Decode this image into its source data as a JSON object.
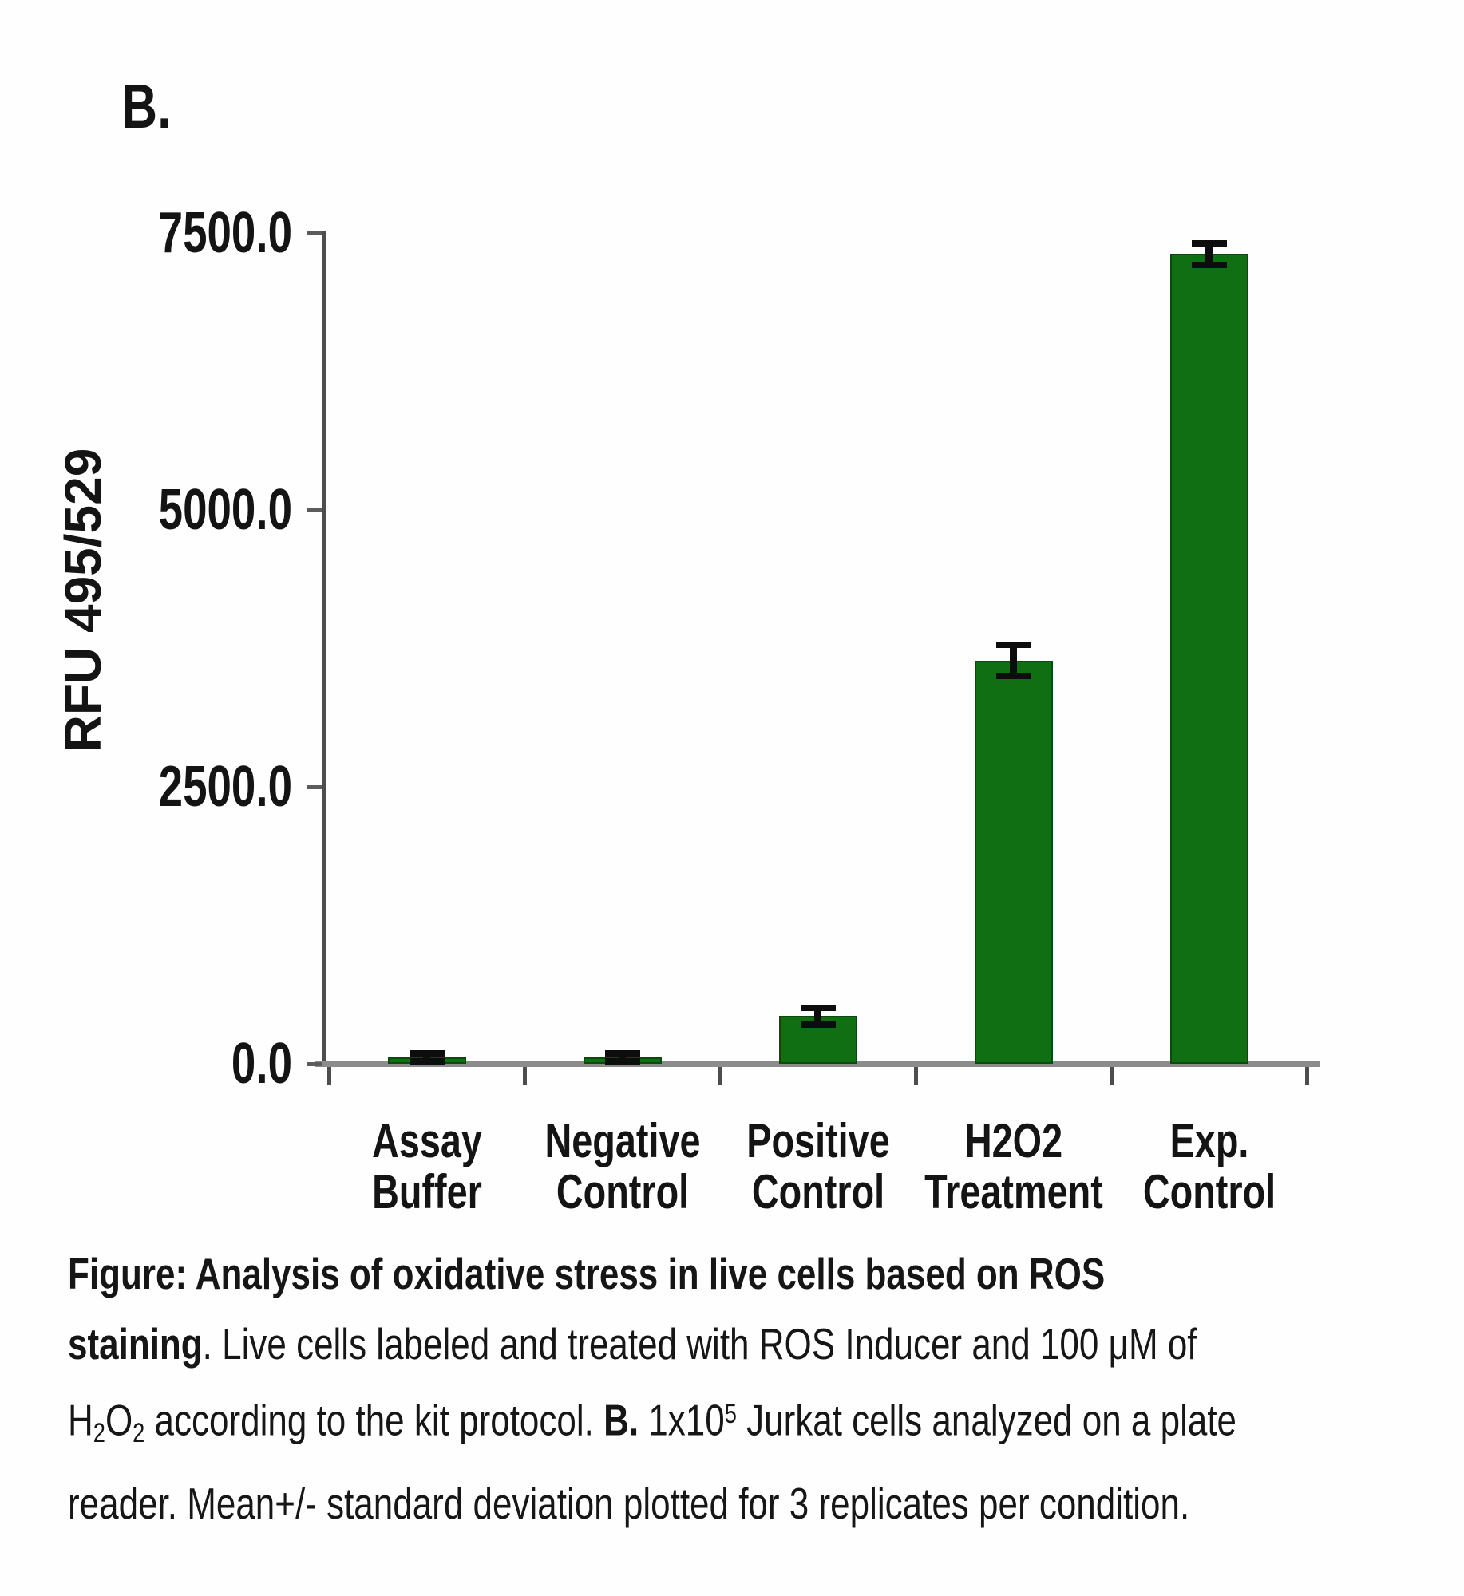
{
  "panel_label": "B.",
  "chart_data": {
    "type": "bar",
    "title": "",
    "xlabel": "",
    "ylabel": "RFU 495/529",
    "ylim": [
      0,
      7500
    ],
    "grid": false,
    "legend": null,
    "bar_color": "#106e13",
    "error_bar_color": "#0d0d0d",
    "yticks": [
      {
        "value": 7500,
        "label": "7500.0"
      },
      {
        "value": 5000,
        "label": "5000.0"
      },
      {
        "value": 2500,
        "label": "2500.0"
      },
      {
        "value": 0,
        "label": "0.0"
      }
    ],
    "categories": [
      {
        "line1": "Assay",
        "line2": "Buffer"
      },
      {
        "line1": "Negative",
        "line2": "Control"
      },
      {
        "line1": "Positive",
        "line2": "Control"
      },
      {
        "line1": "H2O2",
        "line2": "Treatment"
      },
      {
        "line1": "Exp.",
        "line2": "Control"
      }
    ],
    "series": [
      {
        "name": "RFU 495/529 mean of 3 replicates",
        "values": [
          60,
          60,
          430,
          3640,
          7310
        ],
        "errors": [
          35,
          35,
          75,
          140,
          95
        ]
      }
    ]
  },
  "caption": {
    "segments": [
      {
        "t": "Figure: Analysis of oxidative stress in live cells based on ROS",
        "b": true
      },
      {
        "br": true
      },
      {
        "t": "staining",
        "b": true
      },
      {
        "t": ". Live cells labeled and treated with ROS Inducer and 100 μM of"
      },
      {
        "br": true
      },
      {
        "t": "H"
      },
      {
        "t": "2",
        "sub": true
      },
      {
        "t": "O"
      },
      {
        "t": "2",
        "sub": true
      },
      {
        "t": " according to the kit protocol. "
      },
      {
        "t": "B.",
        "b": true
      },
      {
        "t": " 1x10"
      },
      {
        "t": "5",
        "sup": true
      },
      {
        "t": " Jurkat cells analyzed on a plate"
      },
      {
        "br": true
      },
      {
        "t": "reader. Mean+/- standard deviation plotted for 3 replicates per condition."
      }
    ]
  },
  "colors": {
    "bar_green": "#106e13",
    "axis_dark_gray": "#4d4d4d",
    "baseline_gray": "#8c8c8c",
    "text_black": "#141414"
  }
}
